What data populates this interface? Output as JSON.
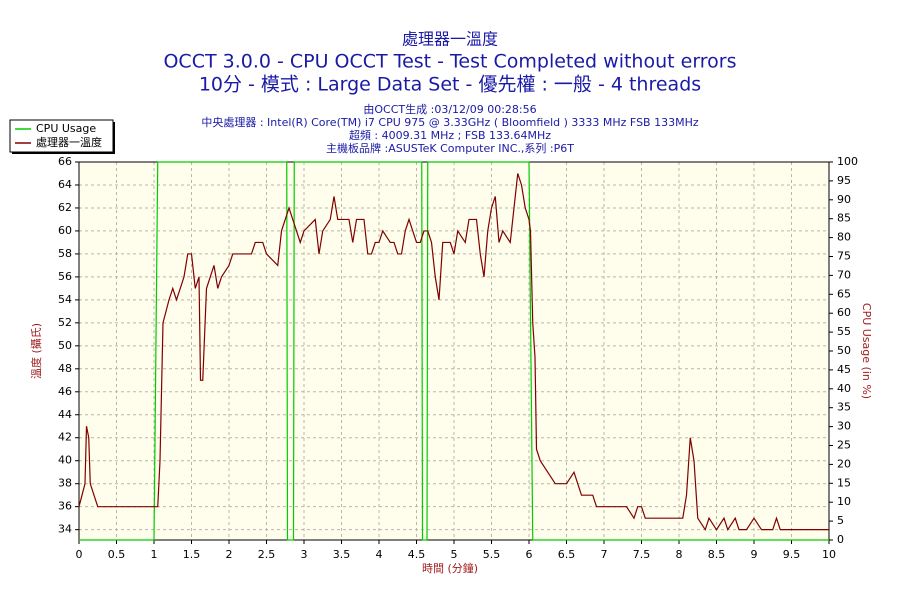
{
  "chart_data": {
    "type": "line",
    "title": "處理器一溫度",
    "subtitle": [
      "OCCT 3.0.0 - CPU OCCT Test - Test Completed without errors",
      "10分 - 模式 : Large Data Set - 優先權 : 一般 - 4 threads"
    ],
    "annotations": [
      "由OCCT生成 :03/12/09 00:28:56",
      "中央處理器 : Intel(R) Core(TM) i7 CPU 975 @ 3.33GHz ( Bloomfield ) 3333 MHz FSB 133MHz",
      "超頻 : 4009.31 MHz ; FSB 133.64MHz",
      "主機板品牌 :ASUSTeK Computer INC.,系列 :P6T"
    ],
    "xlabel": "時間 (分鐘)",
    "ylabel": "溫度 (攝氏)",
    "y2label": "CPU Usage (in %)",
    "xlim": [
      0,
      10
    ],
    "xticks": [
      0,
      0.5,
      1,
      1.5,
      2,
      2.5,
      3,
      3.5,
      4,
      4.5,
      5,
      5.5,
      6,
      6.5,
      7,
      7.5,
      8,
      8.5,
      9,
      9.5,
      10
    ],
    "ylim": [
      33.1,
      66
    ],
    "yticks": [
      34,
      36,
      38,
      40,
      42,
      44,
      46,
      48,
      50,
      52,
      54,
      56,
      58,
      60,
      62,
      64,
      66
    ],
    "y2lim": [
      0,
      100
    ],
    "y2ticks": [
      0,
      5,
      10,
      15,
      20,
      25,
      30,
      35,
      40,
      45,
      50,
      55,
      60,
      65,
      70,
      75,
      80,
      85,
      90,
      95,
      100
    ],
    "grid": true,
    "legend": "top-left",
    "series": [
      {
        "name": "CPU Usage",
        "color": "#00cc00",
        "axis": "y2",
        "x": [
          0,
          1.0,
          1.05,
          2.77,
          2.78,
          2.86,
          2.87,
          4.57,
          4.58,
          4.64,
          4.65,
          6.0,
          6.05,
          10
        ],
        "values": [
          0,
          0,
          100,
          100,
          0,
          0,
          100,
          100,
          0,
          0,
          100,
          100,
          0,
          0
        ]
      },
      {
        "name": "處理器一溫度",
        "color": "#800000",
        "axis": "y",
        "x": [
          0,
          0.08,
          0.1,
          0.13,
          0.15,
          0.2,
          0.25,
          1.05,
          1.08,
          1.12,
          1.2,
          1.25,
          1.3,
          1.35,
          1.4,
          1.45,
          1.5,
          1.55,
          1.6,
          1.62,
          1.65,
          1.7,
          1.75,
          1.8,
          1.85,
          1.9,
          2.0,
          2.05,
          2.3,
          2.35,
          2.45,
          2.5,
          2.65,
          2.7,
          2.8,
          2.85,
          2.95,
          3.0,
          3.15,
          3.2,
          3.25,
          3.35,
          3.4,
          3.45,
          3.6,
          3.65,
          3.7,
          3.8,
          3.85,
          3.9,
          3.95,
          4.0,
          4.05,
          4.15,
          4.2,
          4.25,
          4.3,
          4.35,
          4.4,
          4.5,
          4.55,
          4.6,
          4.65,
          4.7,
          4.75,
          4.8,
          4.85,
          4.9,
          4.95,
          5.0,
          5.05,
          5.15,
          5.2,
          5.3,
          5.35,
          5.4,
          5.45,
          5.5,
          5.55,
          5.6,
          5.65,
          5.75,
          5.8,
          5.85,
          5.9,
          5.95,
          6.0,
          6.02,
          6.05,
          6.08,
          6.1,
          6.15,
          6.25,
          6.35,
          6.5,
          6.6,
          6.65,
          6.7,
          6.85,
          6.9,
          7.3,
          7.4,
          7.45,
          7.5,
          7.55,
          8.05,
          8.1,
          8.15,
          8.2,
          8.25,
          8.35,
          8.4,
          8.5,
          8.6,
          8.65,
          8.75,
          8.8,
          8.9,
          9.0,
          9.1,
          9.25,
          9.3,
          9.35,
          10
        ],
        "values": [
          36,
          38,
          43,
          42,
          38,
          37,
          36,
          36,
          40,
          52,
          54,
          55,
          54,
          55,
          56,
          58,
          58,
          55,
          56,
          47,
          47,
          55,
          56,
          57,
          55,
          56,
          57,
          58,
          58,
          59,
          59,
          58,
          57,
          60,
          62,
          61,
          59,
          60,
          61,
          58,
          60,
          61,
          63,
          61,
          61,
          59,
          61,
          61,
          58,
          58,
          59,
          59,
          60,
          59,
          59,
          58,
          58,
          60,
          61,
          59,
          59,
          60,
          60,
          59,
          56,
          54,
          59,
          59,
          59,
          58,
          60,
          59,
          61,
          61,
          58,
          56,
          60,
          62,
          63,
          59,
          60,
          59,
          62,
          65,
          64,
          62,
          61,
          60,
          52,
          49,
          41,
          40,
          39,
          38,
          38,
          39,
          38,
          37,
          37,
          36,
          36,
          35,
          36,
          36,
          35,
          35,
          37,
          42,
          40,
          35,
          34,
          35,
          34,
          35,
          34,
          35,
          34,
          34,
          35,
          34,
          34,
          35,
          34,
          34
        ]
      }
    ]
  }
}
